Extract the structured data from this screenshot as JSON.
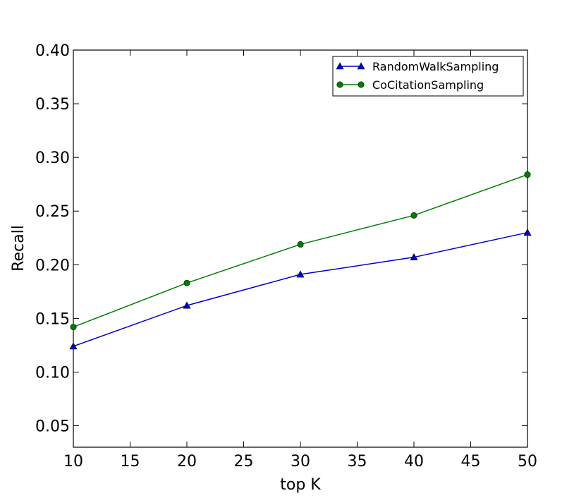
{
  "chart_data": {
    "type": "line",
    "title": "",
    "xlabel": "top K",
    "ylabel": "Recall",
    "x": [
      10,
      20,
      30,
      40,
      50
    ],
    "xlim": [
      10,
      50
    ],
    "ylim": [
      0.03,
      0.4
    ],
    "xticks": [
      "10",
      "15",
      "20",
      "25",
      "30",
      "35",
      "40",
      "45",
      "50"
    ],
    "xtick_values": [
      10,
      15,
      20,
      25,
      30,
      35,
      40,
      45,
      50
    ],
    "yticks": [
      "0.05",
      "0.10",
      "0.15",
      "0.20",
      "0.25",
      "0.30",
      "0.35",
      "0.40"
    ],
    "ytick_values": [
      0.05,
      0.1,
      0.15,
      0.2,
      0.25,
      0.3,
      0.35,
      0.4
    ],
    "grid": false,
    "legend_position": "top-right",
    "series": [
      {
        "name": "RandomWalkSampling",
        "values": [
          0.124,
          0.162,
          0.191,
          0.207,
          0.23
        ],
        "color": "#0000cc",
        "marker": "triangle"
      },
      {
        "name": "CoCitationSampling",
        "values": [
          0.142,
          0.183,
          0.219,
          0.246,
          0.284
        ],
        "color": "#007f00",
        "marker": "circle"
      }
    ]
  }
}
